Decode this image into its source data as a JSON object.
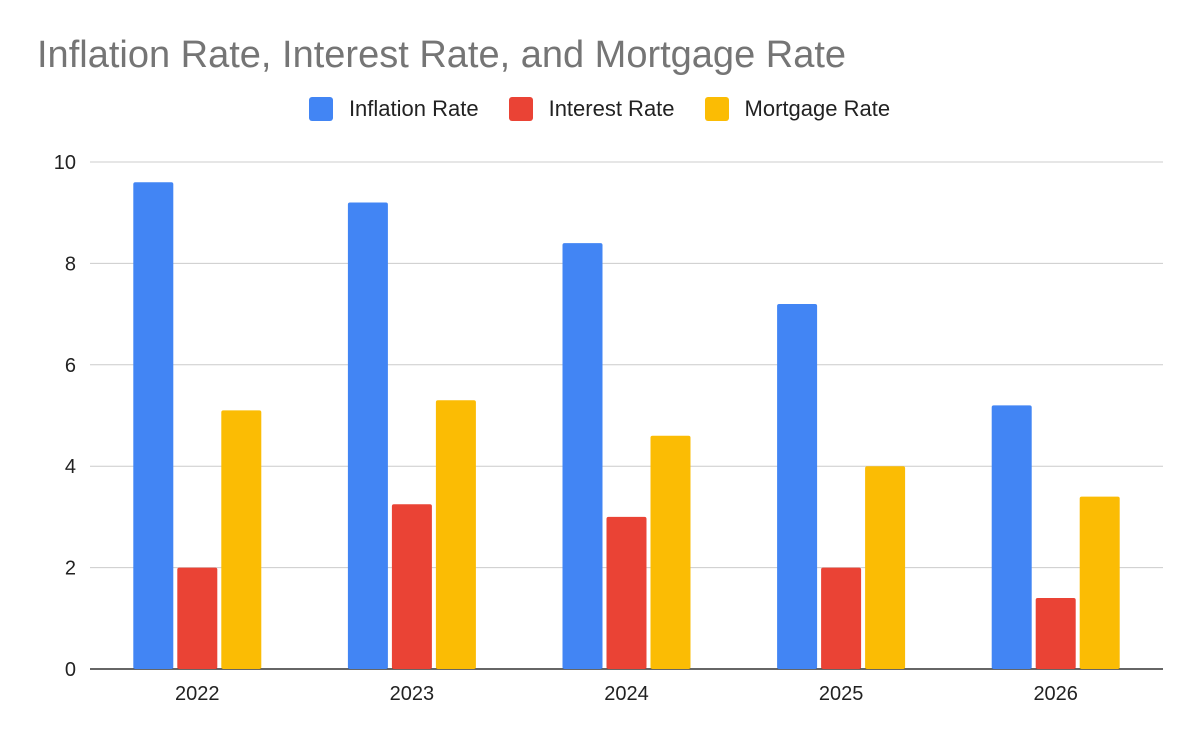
{
  "chart_data": {
    "type": "bar",
    "title": "Inflation Rate, Interest Rate, and Mortgage Rate",
    "categories": [
      "2022",
      "2023",
      "2024",
      "2025",
      "2026"
    ],
    "series": [
      {
        "name": "Inflation Rate",
        "color": "#4285F4",
        "values": [
          9.6,
          9.2,
          8.4,
          7.2,
          5.2
        ]
      },
      {
        "name": "Interest Rate",
        "color": "#EA4335",
        "values": [
          2.0,
          3.25,
          3.0,
          2.0,
          1.4
        ]
      },
      {
        "name": "Mortgage Rate",
        "color": "#FBBC04",
        "values": [
          5.1,
          5.3,
          4.6,
          4.0,
          3.4
        ]
      }
    ],
    "ylim": [
      0,
      10
    ],
    "yticks": [
      "0",
      "2",
      "4",
      "6",
      "8",
      "10"
    ],
    "grid": true,
    "legend_position": "top"
  }
}
